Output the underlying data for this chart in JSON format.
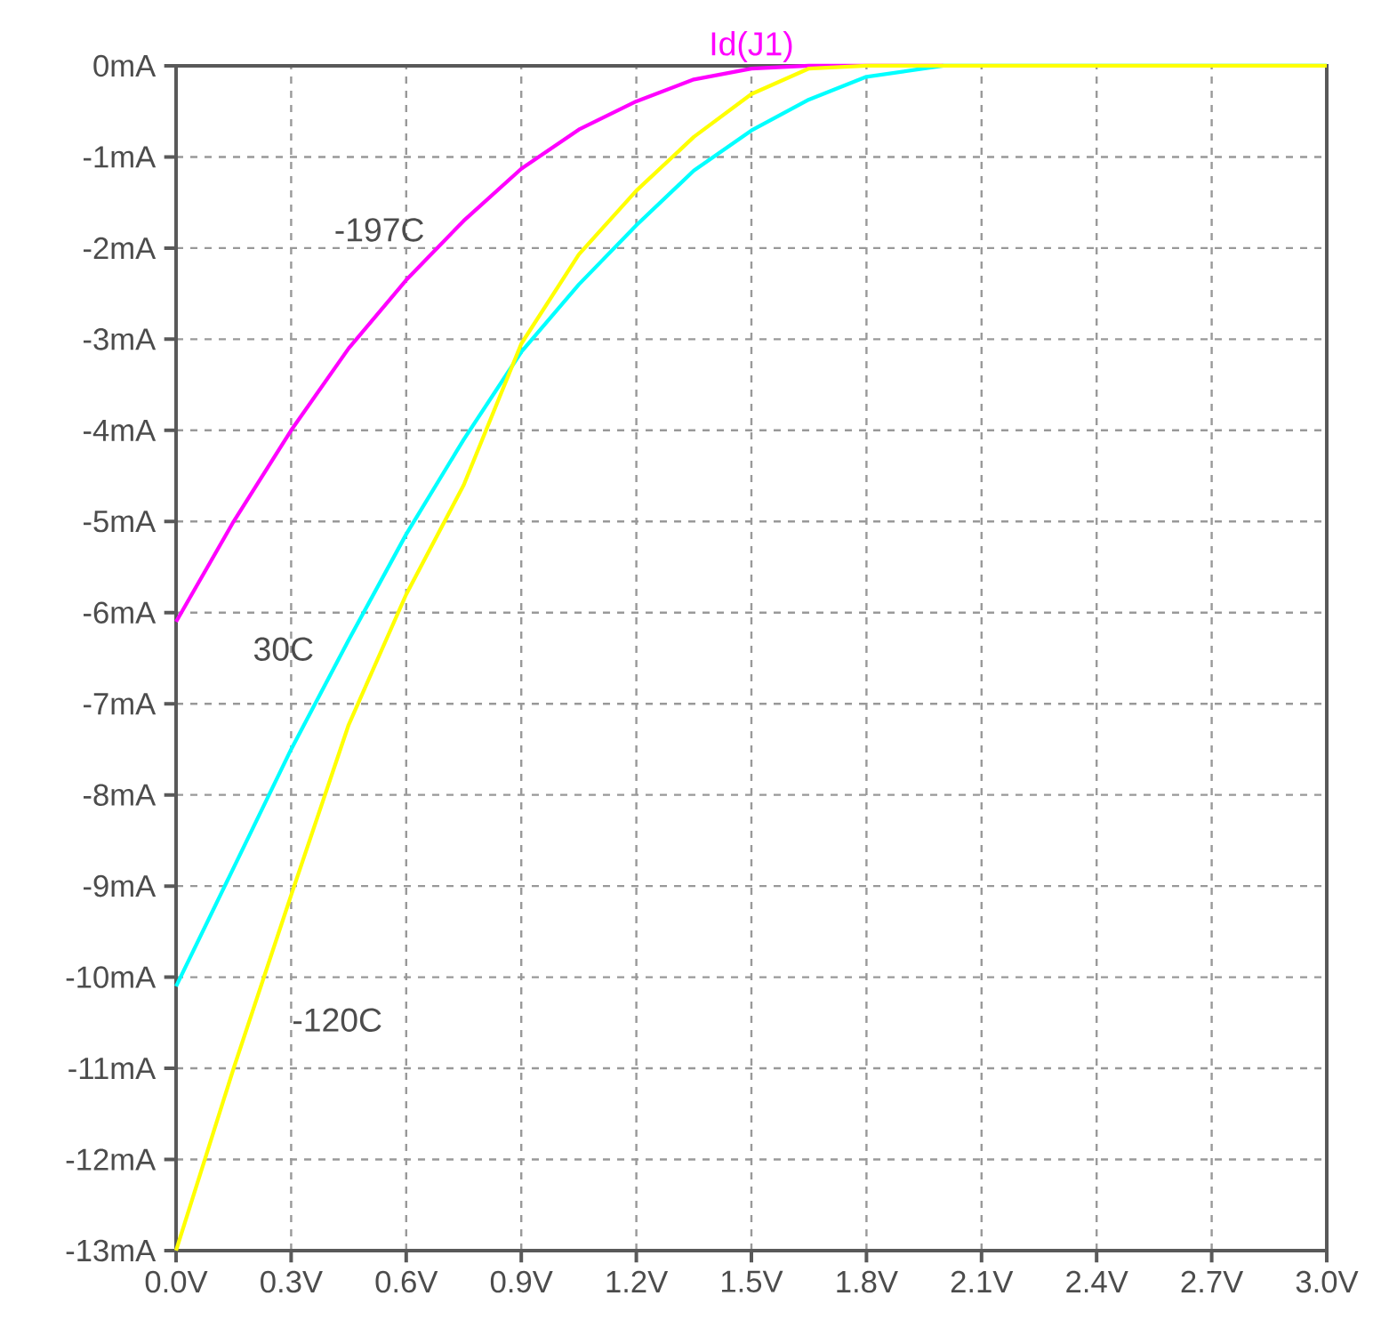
{
  "chart_data": {
    "type": "line",
    "title": "Id(J1)",
    "x": [
      0,
      0.15,
      0.3,
      0.45,
      0.6,
      0.75,
      0.9,
      1.05,
      1.2,
      1.35,
      1.5,
      1.65,
      1.8,
      2.0,
      2.4,
      3.0
    ],
    "series": [
      {
        "name": "-197C",
        "color": "#ff00ff",
        "values": [
          -6.1,
          -5.0,
          -4.0,
          -3.1,
          -2.35,
          -1.7,
          -1.13,
          -0.7,
          -0.39,
          -0.15,
          -0.03,
          0,
          0,
          0,
          null,
          null
        ]
      },
      {
        "name": "30C",
        "color": "#00ffff",
        "values": [
          -10.1,
          -8.8,
          -7.5,
          -6.3,
          -5.14,
          -4.1,
          -3.14,
          -2.4,
          -1.75,
          -1.15,
          -0.71,
          -0.37,
          -0.12,
          0,
          0,
          0
        ]
      },
      {
        "name": "-120C",
        "color": "#ffff00",
        "values": [
          -13,
          -11.0,
          -9.1,
          -7.23,
          -5.8,
          -4.6,
          -3.05,
          -2.07,
          -1.37,
          -0.78,
          -0.31,
          -0.03,
          0,
          0,
          0,
          0
        ]
      }
    ],
    "xlim": [
      0,
      3.0
    ],
    "ylim": [
      -13,
      0
    ],
    "xticks": [
      {
        "value": 0,
        "label": "0.0V"
      },
      {
        "value": 0.3,
        "label": "0.3V"
      },
      {
        "value": 0.6,
        "label": "0.6V"
      },
      {
        "value": 0.9,
        "label": "0.9V"
      },
      {
        "value": 1.2,
        "label": "1.2V"
      },
      {
        "value": 1.5,
        "label": "1.5V"
      },
      {
        "value": 1.8,
        "label": "1.8V"
      },
      {
        "value": 2.1,
        "label": "2.1V"
      },
      {
        "value": 2.4,
        "label": "2.4V"
      },
      {
        "value": 2.7,
        "label": "2.7V"
      },
      {
        "value": 3.0,
        "label": "3.0V"
      }
    ],
    "yticks": [
      {
        "value": 0,
        "label": "0mA"
      },
      {
        "value": -1,
        "label": "-1mA"
      },
      {
        "value": -2,
        "label": "-2mA"
      },
      {
        "value": -3,
        "label": "-3mA"
      },
      {
        "value": -4,
        "label": "-4mA"
      },
      {
        "value": -5,
        "label": "-5mA"
      },
      {
        "value": -6,
        "label": "-6mA"
      },
      {
        "value": -7,
        "label": "-7mA"
      },
      {
        "value": -8,
        "label": "-8mA"
      },
      {
        "value": -9,
        "label": "-9mA"
      },
      {
        "value": -10,
        "label": "-10mA"
      },
      {
        "value": -11,
        "label": "-11mA"
      },
      {
        "value": -12,
        "label": "-12mA"
      },
      {
        "value": -13,
        "label": "-13mA"
      }
    ],
    "grid": true,
    "line_style": "solid"
  }
}
